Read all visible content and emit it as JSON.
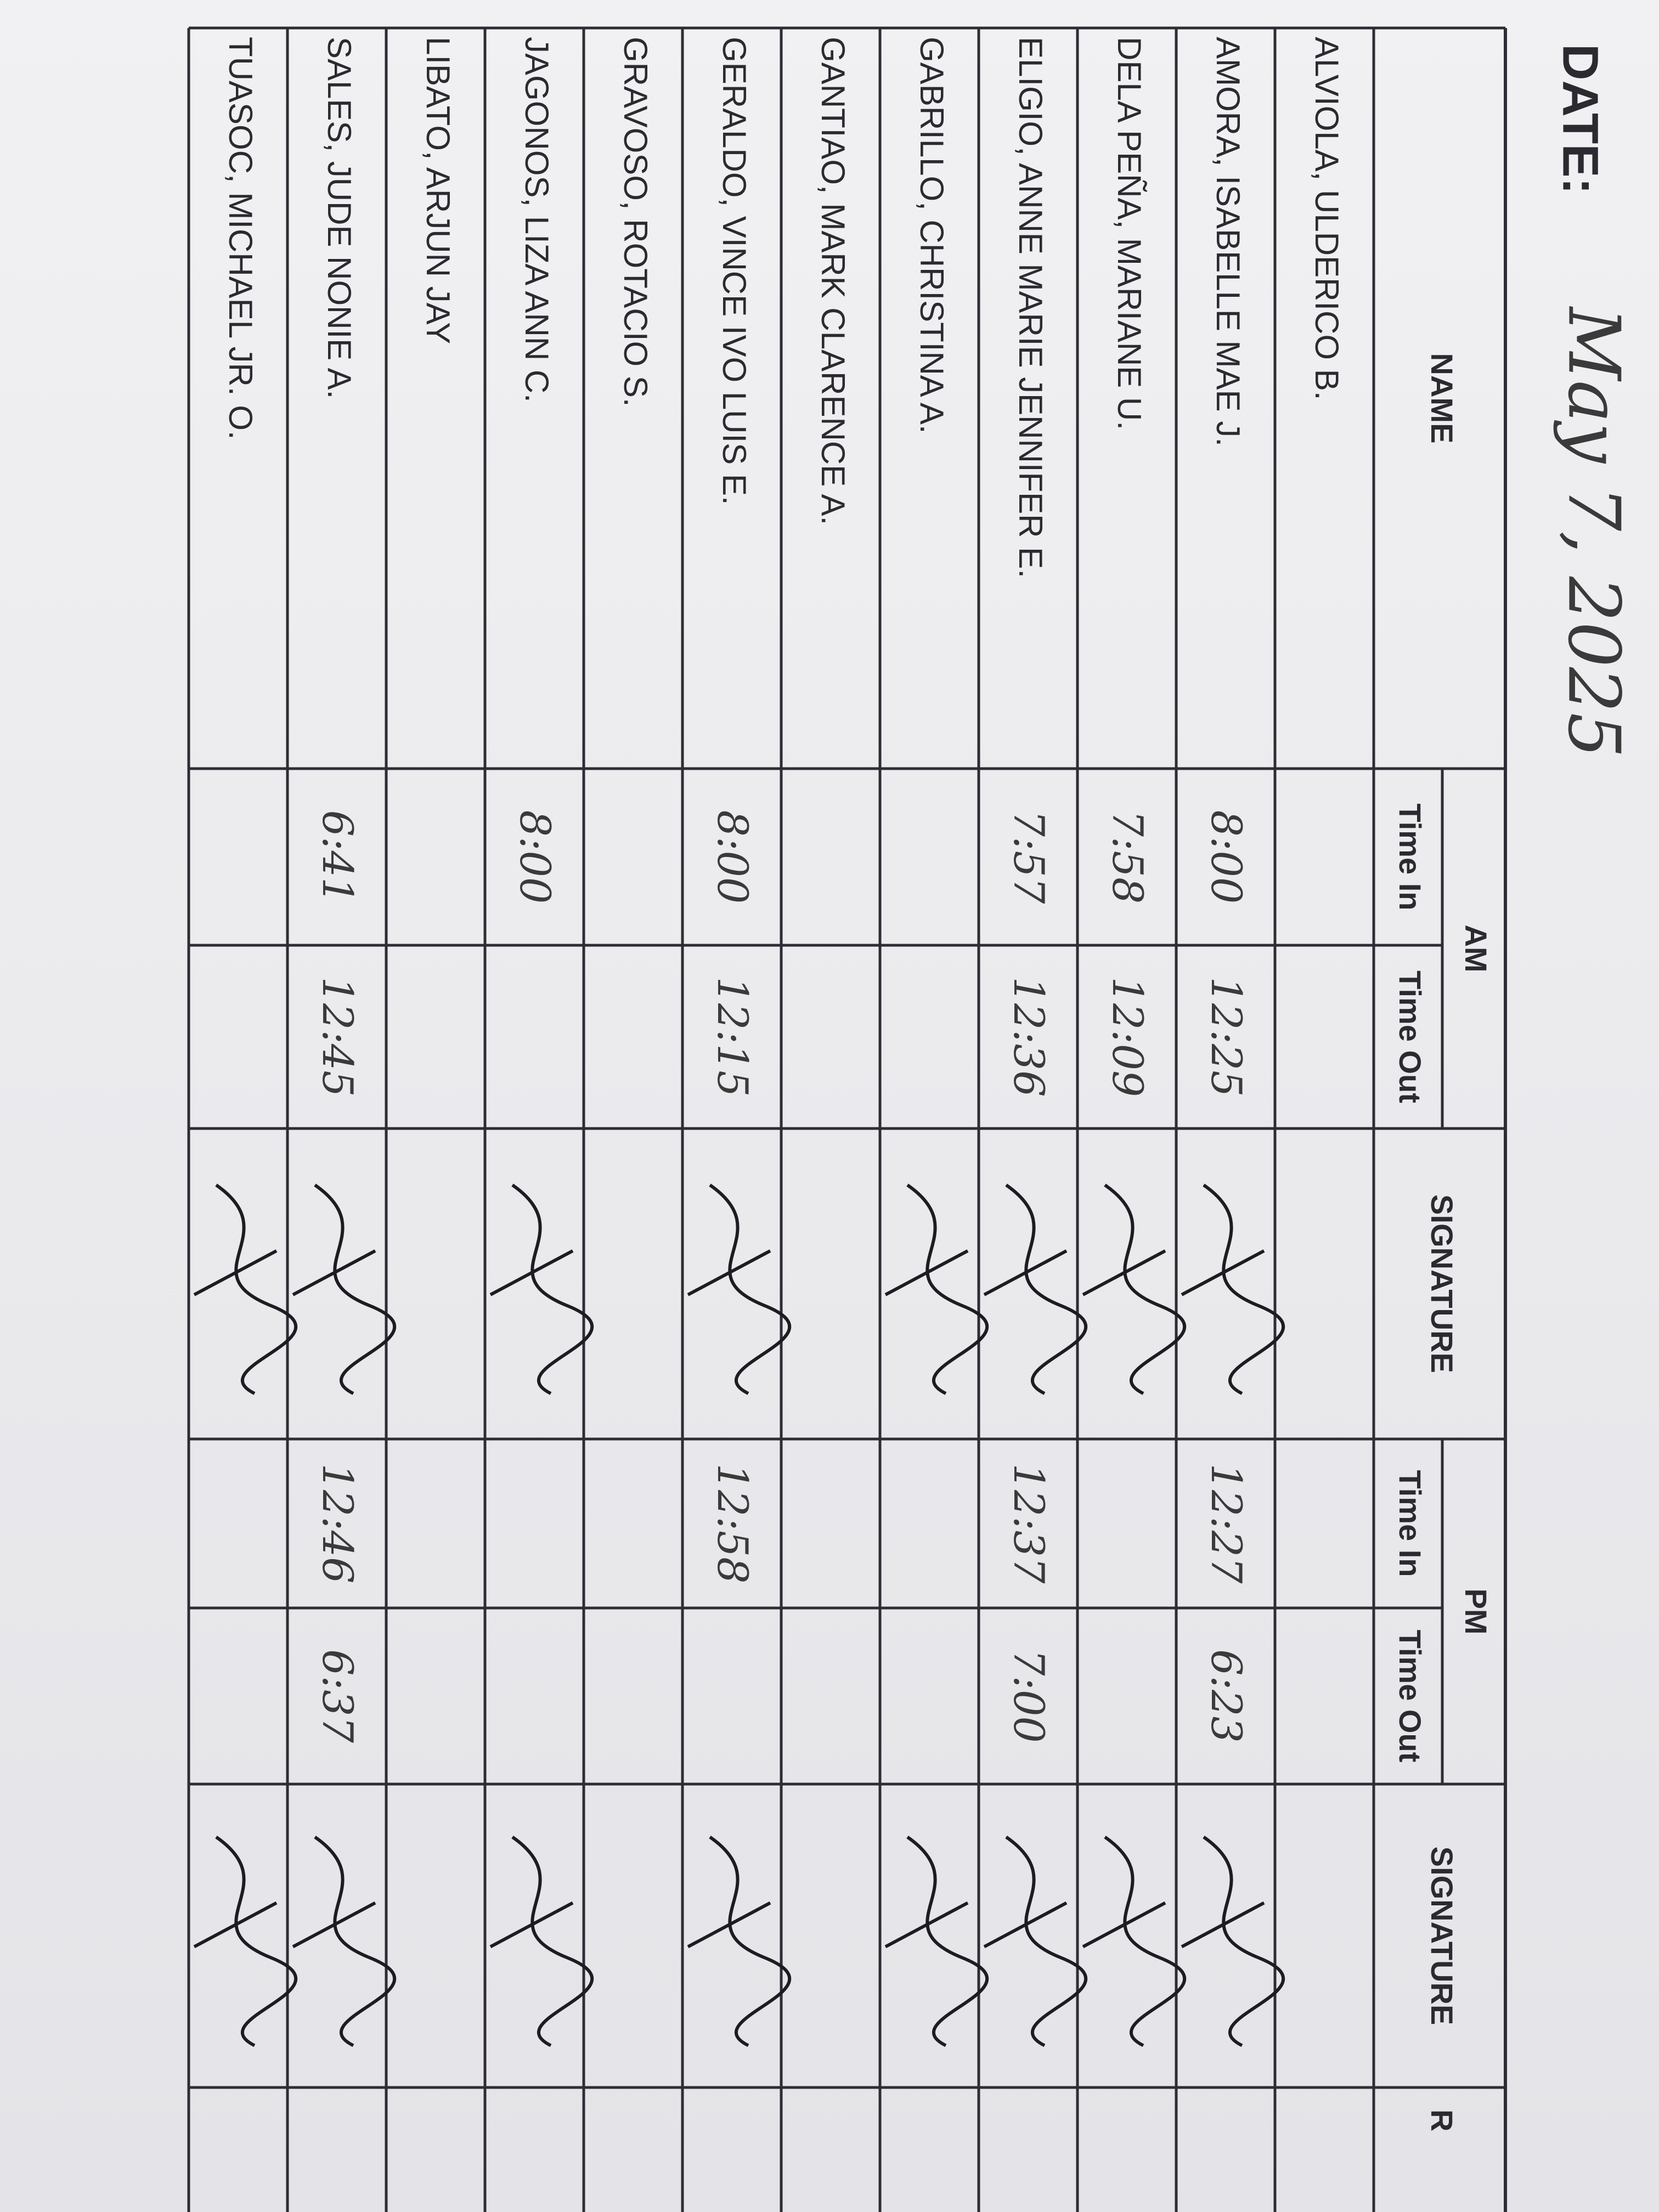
{
  "header": {
    "date_label": "DATE:",
    "date": "May 7, 2025"
  },
  "table": {
    "columns": {
      "name": "NAME",
      "am": "AM",
      "am_time_in": "Time In",
      "am_time_out": "Time Out",
      "am_signature": "SIGNATURE",
      "pm": "PM",
      "pm_time_in": "Time In",
      "pm_time_out": "Time Out",
      "pm_signature": "SIGNATURE",
      "remarks": "R"
    },
    "rows": [
      {
        "name": "ALVIOLA, ULDERICO B."
      },
      {
        "name": "AMORA, ISABELLE MAE J.",
        "am_in": "8:00",
        "am_out": "12:25",
        "pm_in": "12:27",
        "pm_out": "6:23"
      },
      {
        "name": "DELA PEÑA, MARIANE U.",
        "am_in": "7:58",
        "am_out": "12:09"
      },
      {
        "name": "ELIGIO, ANNE MARIE JENNIFER E.",
        "am_in": "7:57",
        "am_out": "12:36",
        "pm_in": "12:37",
        "pm_out": "7:00"
      },
      {
        "name": "GABRILLO, CHRISTINA A."
      },
      {
        "name": "GANTIAO, MARK CLARENCE A."
      },
      {
        "name": "GERALDO, VINCE IVO LUIS E.",
        "am_in": "8:00",
        "am_out": "12:15",
        "pm_in": "12:58"
      },
      {
        "name": "GRAVOSO, ROTACIO S."
      },
      {
        "name": "JAGONOS, LIZA ANN C.",
        "am_in": "8:00"
      },
      {
        "name": "LIBATO, ARJUN JAY"
      },
      {
        "name": "SALES, JUDE NONIE A.",
        "am_in": "6:41",
        "am_out": "12:45",
        "pm_in": "12:46",
        "pm_out": "6:37"
      },
      {
        "name": "TUASOC, MICHAEL JR. O."
      }
    ]
  }
}
